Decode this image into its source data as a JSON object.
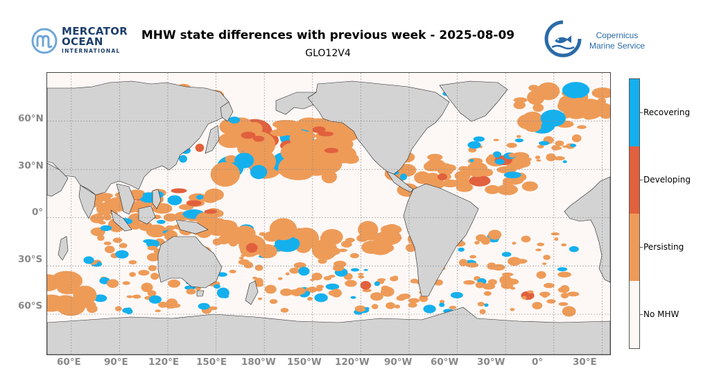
{
  "header": {
    "title": "MHW state differences with previous week - 2025-08-09",
    "subtitle": "GLO12V4"
  },
  "logos": {
    "mercator": {
      "line1": "MERCATOR",
      "line2": "OCEAN",
      "line3": "INTERNATIONAL",
      "color": "#1d3f6c",
      "mark_color": "#6ea6d6"
    },
    "copernicus": {
      "line1": "Copernicus",
      "line2": "Marine Service",
      "color": "#2a6aa8"
    }
  },
  "map": {
    "projection": "PlateCarree, central longitude 200°E",
    "extent": {
      "lon_min": 45,
      "lon_max": 395,
      "lat_min": -85,
      "lat_max": 90
    },
    "land_color": "#d3d3d3",
    "ocean_no_mhw_color": "#fdf8f6",
    "gridlines": true,
    "lon_ticks": [
      "60°E",
      "90°E",
      "120°E",
      "150°E",
      "180°W",
      "150°W",
      "120°W",
      "90°W",
      "60°W",
      "30°W",
      "0°",
      "30°E"
    ],
    "lat_ticks": [
      "60°N",
      "30°N",
      "0°",
      "30°S",
      "60°S"
    ]
  },
  "legend": {
    "categories": [
      {
        "label": "Recovering",
        "color": "#14b0ee"
      },
      {
        "label": "Developing",
        "color": "#e1603d"
      },
      {
        "label": "Persisting",
        "color": "#ee9b58"
      },
      {
        "label": "No MHW",
        "color": "#fdf8f6"
      }
    ]
  }
}
